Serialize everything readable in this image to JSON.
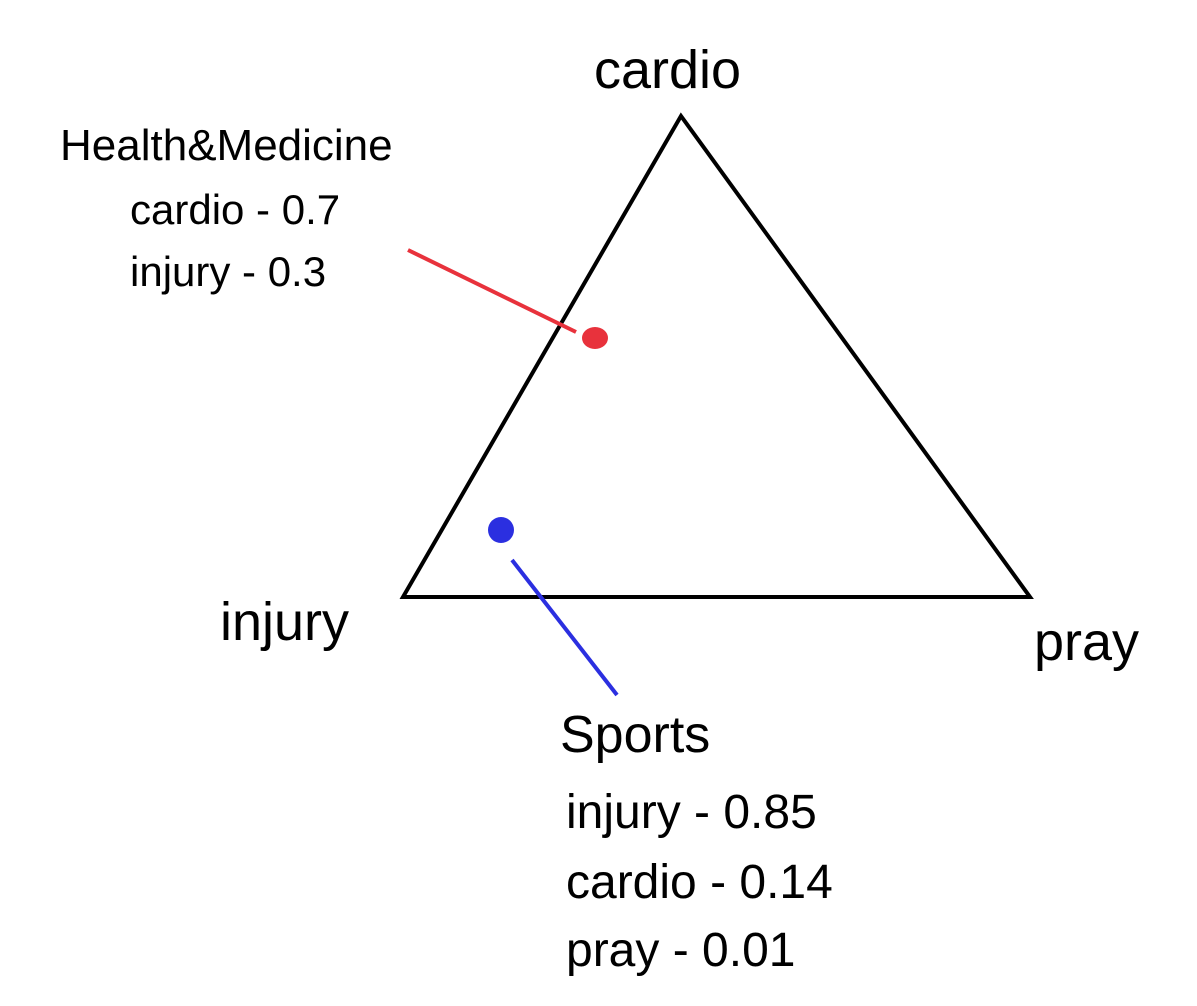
{
  "vertices": {
    "top": "cardio",
    "left": "injury",
    "right": "pray"
  },
  "documents": [
    {
      "name": "Health&Medicine",
      "color": "#e8323c",
      "entries": [
        "cardio - 0.7",
        "injury - 0.3"
      ],
      "weights": {
        "cardio": 0.7,
        "injury": 0.3,
        "pray": 0.0
      }
    },
    {
      "name": "Sports",
      "color": "#2b2fe0",
      "entries": [
        "injury - 0.85",
        "cardio - 0.14",
        "pray - 0.01"
      ],
      "weights": {
        "injury": 0.85,
        "cardio": 0.14,
        "pray": 0.01
      }
    }
  ],
  "colors": {
    "outline": "#000000",
    "health": "#e8323c",
    "sports": "#2b2fe0"
  }
}
